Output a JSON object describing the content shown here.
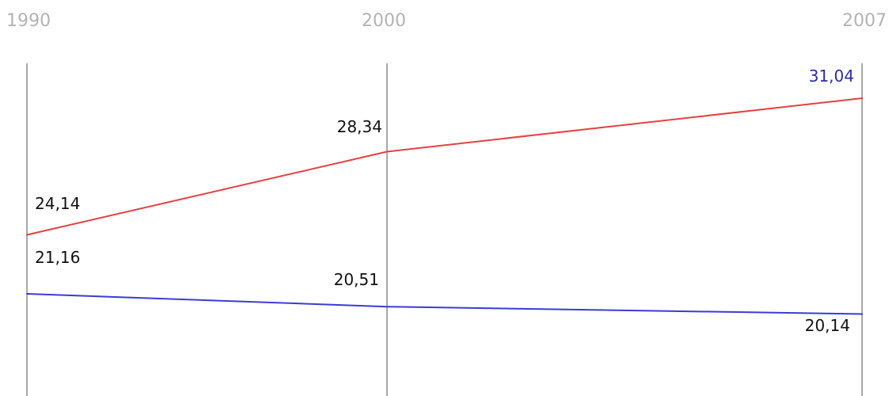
{
  "chart_data": {
    "type": "line",
    "categories": [
      "1990",
      "2000",
      "2007"
    ],
    "x": [
      1990,
      2000,
      2007
    ],
    "series": [
      {
        "color": "#e64040",
        "values": [
          24.14,
          28.34,
          31.04
        ],
        "labels": [
          "24,14",
          "28,34",
          "31,04"
        ]
      },
      {
        "color": "#3b3bd6",
        "values": [
          21.16,
          20.51,
          20.14
        ],
        "labels": [
          "21,16",
          "20,51",
          "20,14"
        ]
      }
    ],
    "grid": true,
    "legend": "none"
  },
  "colors": {
    "year_labels": "#b3b3b3",
    "gridlines": "#a8a8a8",
    "value_text": "#111111",
    "highlight_text": "#2c2ca8"
  }
}
